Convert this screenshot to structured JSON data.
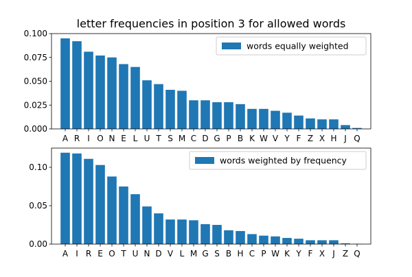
{
  "chart_data": [
    {
      "type": "bar",
      "title": "letter frequencies in position 3 for allowed words",
      "legend": "top-right",
      "series": [
        {
          "name": "words equally weighted",
          "color": "#1f77b4",
          "categories": [
            "A",
            "R",
            "I",
            "O",
            "N",
            "E",
            "L",
            "U",
            "T",
            "S",
            "M",
            "C",
            "D",
            "G",
            "P",
            "B",
            "K",
            "W",
            "V",
            "Y",
            "F",
            "Z",
            "X",
            "H",
            "J",
            "Q"
          ],
          "values": [
            0.095,
            0.092,
            0.081,
            0.077,
            0.075,
            0.068,
            0.065,
            0.051,
            0.047,
            0.041,
            0.04,
            0.03,
            0.03,
            0.028,
            0.028,
            0.026,
            0.021,
            0.021,
            0.019,
            0.017,
            0.014,
            0.011,
            0.01,
            0.01,
            0.004,
            0.001
          ]
        }
      ],
      "yticks": [
        "0.000",
        "0.025",
        "0.050",
        "0.075",
        "0.100"
      ],
      "ylim": [
        0,
        0.1
      ]
    },
    {
      "type": "bar",
      "legend": "top-right",
      "series": [
        {
          "name": "words weighted by frequency",
          "color": "#1f77b4",
          "categories": [
            "A",
            "I",
            "R",
            "E",
            "O",
            "T",
            "U",
            "N",
            "D",
            "V",
            "L",
            "M",
            "G",
            "S",
            "B",
            "H",
            "C",
            "P",
            "W",
            "K",
            "Y",
            "F",
            "X",
            "J",
            "Z",
            "Q"
          ],
          "values": [
            0.119,
            0.118,
            0.111,
            0.103,
            0.088,
            0.075,
            0.065,
            0.049,
            0.04,
            0.032,
            0.032,
            0.031,
            0.026,
            0.025,
            0.018,
            0.017,
            0.013,
            0.011,
            0.01,
            0.008,
            0.007,
            0.005,
            0.005,
            0.005,
            0.001,
            0.0003
          ]
        }
      ],
      "yticks": [
        "0.00",
        "0.05",
        "0.10"
      ],
      "ylim": [
        0,
        0.125
      ]
    }
  ]
}
